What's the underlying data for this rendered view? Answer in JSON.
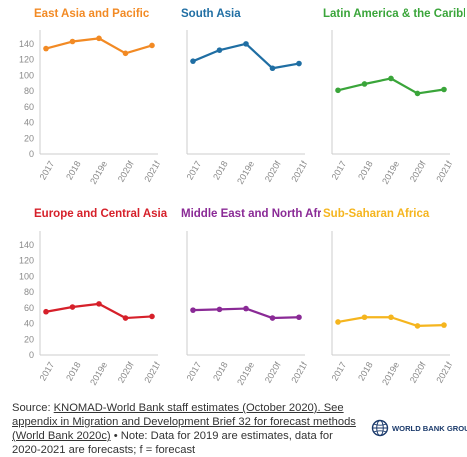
{
  "chart_data": [
    {
      "type": "line",
      "title": "East Asia and Pacific",
      "color": "#f28a24",
      "categories": [
        "2017",
        "2018",
        "2019e",
        "2020f",
        "2021f"
      ],
      "values": [
        134,
        143,
        147,
        128,
        138
      ],
      "yticks": [
        0,
        20,
        40,
        60,
        80,
        100,
        120,
        140
      ],
      "ylim": [
        0,
        150
      ]
    },
    {
      "type": "line",
      "title": "South Asia",
      "color": "#1f6ea3",
      "categories": [
        "2017",
        "2018",
        "2019e",
        "2020f",
        "2021f"
      ],
      "values": [
        118,
        132,
        140,
        109,
        115
      ],
      "yticks": [
        0,
        20,
        40,
        60,
        80,
        100,
        120,
        140
      ],
      "ylim": [
        0,
        150
      ]
    },
    {
      "type": "line",
      "title": "Latin America & the Caribbean",
      "color": "#3aa53a",
      "categories": [
        "2017",
        "2018",
        "2019e",
        "2020f",
        "2021f"
      ],
      "values": [
        81,
        89,
        96,
        77,
        82
      ],
      "yticks": [
        0,
        20,
        40,
        60,
        80,
        100,
        120,
        140
      ],
      "ylim": [
        0,
        150
      ]
    },
    {
      "type": "line",
      "title": "Europe and Central Asia",
      "color": "#d6202a",
      "categories": [
        "2017",
        "2018",
        "2019e",
        "2020f",
        "2021f"
      ],
      "values": [
        55,
        61,
        65,
        47,
        49
      ],
      "yticks": [
        0,
        20,
        40,
        60,
        80,
        100,
        120,
        140
      ],
      "ylim": [
        0,
        150
      ]
    },
    {
      "type": "line",
      "title": "Middle East and North Africa",
      "color": "#8a2a96",
      "categories": [
        "2017",
        "2018",
        "2019e",
        "2020f",
        "2021f"
      ],
      "values": [
        57,
        58,
        59,
        47,
        48
      ],
      "yticks": [
        0,
        20,
        40,
        60,
        80,
        100,
        120,
        140
      ],
      "ylim": [
        0,
        150
      ]
    },
    {
      "type": "line",
      "title": "Sub-Saharan Africa",
      "color": "#f5b51e",
      "categories": [
        "2017",
        "2018",
        "2019e",
        "2020f",
        "2021f"
      ],
      "values": [
        42,
        48,
        48,
        37,
        38
      ],
      "yticks": [
        0,
        20,
        40,
        60,
        80,
        100,
        120,
        140
      ],
      "ylim": [
        0,
        150
      ]
    }
  ],
  "footer": {
    "source_prefix": "Source: ",
    "source_link": "KNOMAD-World Bank staff estimates (October 2020). See appendix in Migration and Development Brief 32 for forecast methods (World Bank 2020c)",
    "source_note": " • Note: Data for 2019 are estimates, data for 2020-2021 are forecasts; f = forecast"
  },
  "logo": {
    "text": "WORLD BANK GROUP",
    "icon": "world-bank-globe-icon",
    "color": "#1b3a6b"
  },
  "colors": {
    "axis": "#cccccc",
    "tick_text": "#8a8a8a",
    "text": "#333333"
  }
}
